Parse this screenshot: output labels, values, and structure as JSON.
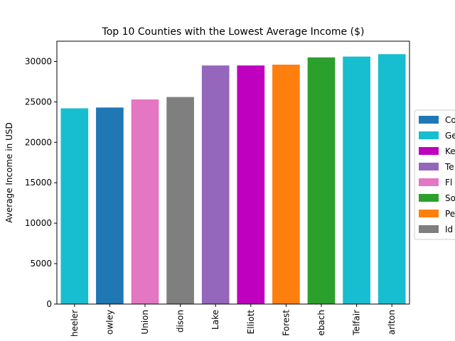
{
  "chart_data": {
    "type": "bar",
    "title": "Top 10 Counties with the Lowest Average Income ($)",
    "xlabel": "",
    "ylabel": "Average Income in USD",
    "ylim": [
      0,
      32500
    ],
    "yticks": [
      0,
      5000,
      10000,
      15000,
      20000,
      25000,
      30000
    ],
    "grid": false,
    "legend_position": "center-right",
    "categories": [
      "heeler",
      "owley",
      "Union",
      "dison",
      "Lake",
      "Elliott",
      "Forest",
      "ebach",
      "Telfair",
      "arlton"
    ],
    "values": [
      24200,
      24300,
      25300,
      25600,
      29500,
      29500,
      29600,
      30500,
      30600,
      30900
    ],
    "bar_colors": [
      "#17becf",
      "#1f77b4",
      "#e377c2",
      "#7f7f7f",
      "#9467bd",
      "#bf00bf",
      "#ff7f0e",
      "#2ca02c",
      "#17becf",
      "#17becf"
    ],
    "legend": [
      {
        "label": "Co",
        "color": "#1f77b4"
      },
      {
        "label": "Ge",
        "color": "#17becf"
      },
      {
        "label": "Ke",
        "color": "#bf00bf"
      },
      {
        "label": "Te",
        "color": "#9467bd"
      },
      {
        "label": "Fl",
        "color": "#e377c2"
      },
      {
        "label": "So",
        "color": "#2ca02c"
      },
      {
        "label": "Pe",
        "color": "#ff7f0e"
      },
      {
        "label": "Id",
        "color": "#7f7f7f"
      }
    ]
  }
}
